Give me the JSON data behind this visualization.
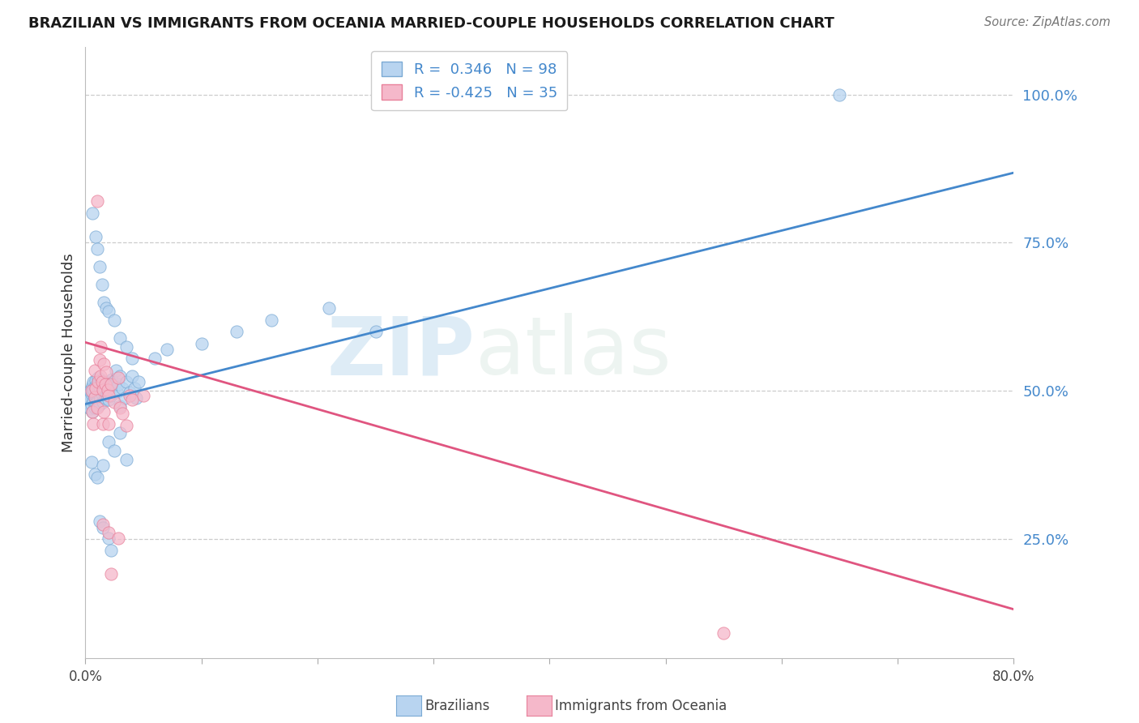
{
  "title": "BRAZILIAN VS IMMIGRANTS FROM OCEANIA MARRIED-COUPLE HOUSEHOLDS CORRELATION CHART",
  "source": "Source: ZipAtlas.com",
  "ylabel": "Married-couple Households",
  "xlim": [
    0.0,
    0.8
  ],
  "ylim": [
    0.05,
    1.08
  ],
  "ytick_labels": [
    "100.0%",
    "75.0%",
    "50.0%",
    "25.0%"
  ],
  "ytick_values": [
    1.0,
    0.75,
    0.5,
    0.25
  ],
  "watermark_zip": "ZIP",
  "watermark_atlas": "atlas",
  "blue_line_x": [
    0.0,
    0.8
  ],
  "blue_line_y": [
    0.478,
    0.868
  ],
  "pink_line_x": [
    0.0,
    0.8
  ],
  "pink_line_y": [
    0.582,
    0.132
  ],
  "blue_scatter": [
    [
      0.001,
      0.475
    ],
    [
      0.002,
      0.48
    ],
    [
      0.002,
      0.49
    ],
    [
      0.003,
      0.495
    ],
    [
      0.003,
      0.485
    ],
    [
      0.004,
      0.5
    ],
    [
      0.004,
      0.47
    ],
    [
      0.005,
      0.505
    ],
    [
      0.005,
      0.478
    ],
    [
      0.005,
      0.495
    ],
    [
      0.006,
      0.51
    ],
    [
      0.006,
      0.465
    ],
    [
      0.006,
      0.498
    ],
    [
      0.007,
      0.515
    ],
    [
      0.007,
      0.483
    ],
    [
      0.007,
      0.502
    ],
    [
      0.008,
      0.488
    ],
    [
      0.008,
      0.507
    ],
    [
      0.008,
      0.472
    ],
    [
      0.009,
      0.493
    ],
    [
      0.009,
      0.518
    ],
    [
      0.009,
      0.48
    ],
    [
      0.01,
      0.487
    ],
    [
      0.01,
      0.512
    ],
    [
      0.01,
      0.475
    ],
    [
      0.011,
      0.498
    ],
    [
      0.011,
      0.522
    ],
    [
      0.011,
      0.485
    ],
    [
      0.012,
      0.49
    ],
    [
      0.012,
      0.508
    ],
    [
      0.012,
      0.478
    ],
    [
      0.013,
      0.502
    ],
    [
      0.013,
      0.52
    ],
    [
      0.013,
      0.488
    ],
    [
      0.014,
      0.495
    ],
    [
      0.014,
      0.512
    ],
    [
      0.015,
      0.508
    ],
    [
      0.015,
      0.482
    ],
    [
      0.016,
      0.515
    ],
    [
      0.016,
      0.498
    ],
    [
      0.017,
      0.505
    ],
    [
      0.017,
      0.488
    ],
    [
      0.018,
      0.512
    ],
    [
      0.019,
      0.498
    ],
    [
      0.02,
      0.507
    ],
    [
      0.02,
      0.485
    ],
    [
      0.021,
      0.515
    ],
    [
      0.022,
      0.492
    ],
    [
      0.023,
      0.52
    ],
    [
      0.024,
      0.498
    ],
    [
      0.025,
      0.51
    ],
    [
      0.026,
      0.535
    ],
    [
      0.027,
      0.498
    ],
    [
      0.028,
      0.512
    ],
    [
      0.03,
      0.475
    ],
    [
      0.03,
      0.525
    ],
    [
      0.032,
      0.505
    ],
    [
      0.034,
      0.488
    ],
    [
      0.035,
      0.515
    ],
    [
      0.038,
      0.498
    ],
    [
      0.04,
      0.525
    ],
    [
      0.042,
      0.505
    ],
    [
      0.044,
      0.488
    ],
    [
      0.046,
      0.515
    ],
    [
      0.006,
      0.8
    ],
    [
      0.009,
      0.76
    ],
    [
      0.01,
      0.74
    ],
    [
      0.012,
      0.71
    ],
    [
      0.014,
      0.68
    ],
    [
      0.016,
      0.65
    ],
    [
      0.018,
      0.64
    ],
    [
      0.02,
      0.635
    ],
    [
      0.025,
      0.62
    ],
    [
      0.03,
      0.59
    ],
    [
      0.035,
      0.575
    ],
    [
      0.04,
      0.555
    ],
    [
      0.005,
      0.38
    ],
    [
      0.008,
      0.36
    ],
    [
      0.01,
      0.355
    ],
    [
      0.015,
      0.375
    ],
    [
      0.02,
      0.415
    ],
    [
      0.025,
      0.4
    ],
    [
      0.03,
      0.43
    ],
    [
      0.035,
      0.385
    ],
    [
      0.012,
      0.28
    ],
    [
      0.015,
      0.27
    ],
    [
      0.02,
      0.252
    ],
    [
      0.022,
      0.232
    ],
    [
      0.06,
      0.555
    ],
    [
      0.07,
      0.57
    ],
    [
      0.1,
      0.58
    ],
    [
      0.13,
      0.6
    ],
    [
      0.16,
      0.62
    ],
    [
      0.21,
      0.64
    ],
    [
      0.25,
      0.6
    ],
    [
      0.65,
      1.0
    ]
  ],
  "pink_scatter": [
    [
      0.005,
      0.5
    ],
    [
      0.006,
      0.465
    ],
    [
      0.007,
      0.445
    ],
    [
      0.008,
      0.49
    ],
    [
      0.008,
      0.535
    ],
    [
      0.009,
      0.505
    ],
    [
      0.01,
      0.472
    ],
    [
      0.011,
      0.515
    ],
    [
      0.012,
      0.552
    ],
    [
      0.013,
      0.525
    ],
    [
      0.013,
      0.575
    ],
    [
      0.014,
      0.515
    ],
    [
      0.015,
      0.502
    ],
    [
      0.015,
      0.445
    ],
    [
      0.016,
      0.545
    ],
    [
      0.016,
      0.465
    ],
    [
      0.017,
      0.512
    ],
    [
      0.018,
      0.532
    ],
    [
      0.019,
      0.502
    ],
    [
      0.02,
      0.492
    ],
    [
      0.02,
      0.445
    ],
    [
      0.022,
      0.512
    ],
    [
      0.025,
      0.482
    ],
    [
      0.028,
      0.522
    ],
    [
      0.03,
      0.472
    ],
    [
      0.032,
      0.462
    ],
    [
      0.035,
      0.442
    ],
    [
      0.038,
      0.492
    ],
    [
      0.01,
      0.82
    ],
    [
      0.015,
      0.275
    ],
    [
      0.02,
      0.262
    ],
    [
      0.028,
      0.252
    ],
    [
      0.022,
      0.192
    ],
    [
      0.04,
      0.485
    ],
    [
      0.05,
      0.492
    ],
    [
      0.55,
      0.092
    ]
  ]
}
